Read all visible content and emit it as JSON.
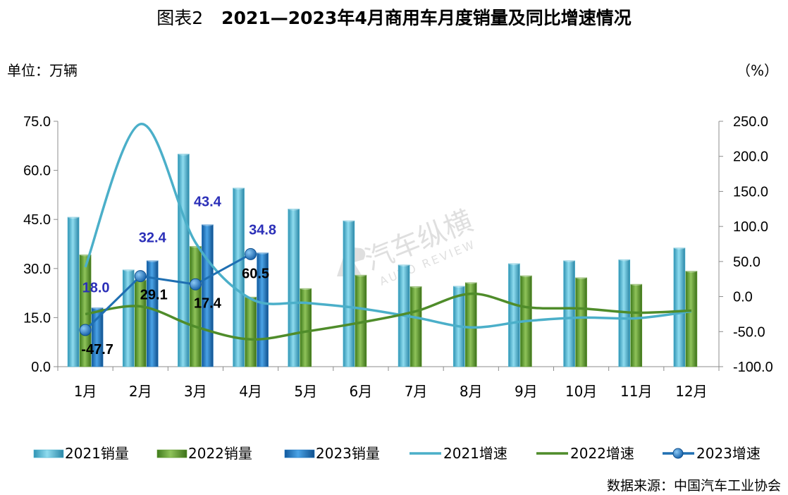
{
  "title": {
    "prefix": "图表2",
    "main": "2021—2023年4月商用车月度销量及同比增速情况"
  },
  "unit_left": "单位：万辆",
  "unit_right": "（%）",
  "source": "数据来源：中国汽车工业协会",
  "watermark": {
    "text": "汽车纵横",
    "sub": "AUTO REVIEW"
  },
  "chart_data": {
    "type": "bar",
    "categories": [
      "1月",
      "2月",
      "3月",
      "4月",
      "5月",
      "6月",
      "7月",
      "8月",
      "9月",
      "10月",
      "11月",
      "12月"
    ],
    "y_left": {
      "min": 0,
      "max": 75,
      "ticks": [
        "0.0",
        "15.0",
        "30.0",
        "45.0",
        "60.0",
        "75.0"
      ]
    },
    "y_right": {
      "min": -100,
      "max": 250,
      "ticks": [
        "-100.0",
        "-50.0",
        "0.0",
        "50.0",
        "100.0",
        "150.0",
        "200.0",
        "250.0"
      ]
    },
    "bar_series": [
      {
        "name": "2021销量",
        "color": "#4bb4d0",
        "values": [
          45.7,
          29.6,
          65.0,
          54.6,
          48.2,
          44.6,
          31.1,
          24.6,
          31.5,
          32.4,
          32.7,
          36.3
        ]
      },
      {
        "name": "2022销量",
        "color": "#5e9a2c",
        "values": [
          34.2,
          26.5,
          36.8,
          21.3,
          23.9,
          28.0,
          24.5,
          25.7,
          27.8,
          27.2,
          25.2,
          29.2
        ]
      },
      {
        "name": "2023销量",
        "color": "#1f78c4",
        "values": [
          18.0,
          32.4,
          43.4,
          34.8,
          null,
          null,
          null,
          null,
          null,
          null,
          null,
          null
        ]
      }
    ],
    "line_series": [
      {
        "name": "2021增速",
        "color": "#4bafc9",
        "values": [
          42,
          246,
          77,
          -3,
          -9,
          -17,
          -30,
          -44,
          -35,
          -30,
          -31,
          -21
        ]
      },
      {
        "name": "2022增速",
        "color": "#4f8c2a",
        "values": [
          -25,
          -14,
          -43,
          -61,
          -50,
          -37,
          -21,
          4,
          -15,
          -17,
          -23,
          -20
        ]
      },
      {
        "name": "2023增速",
        "color": "#1f6fb2",
        "values": [
          -47.7,
          29.1,
          17.4,
          60.5,
          null,
          null,
          null,
          null,
          null,
          null,
          null,
          null
        ]
      }
    ],
    "bar_labels_2023": [
      "18.0",
      "32.4",
      "43.4",
      "34.8"
    ],
    "line_labels_2023": [
      "-47.7",
      "29.1",
      "17.4",
      "60.5"
    ],
    "legend": [
      "2021销量",
      "2022销量",
      "2023销量",
      "2021增速",
      "2022增速",
      "2023增速"
    ],
    "legend_position": "bottom",
    "grid": false
  }
}
